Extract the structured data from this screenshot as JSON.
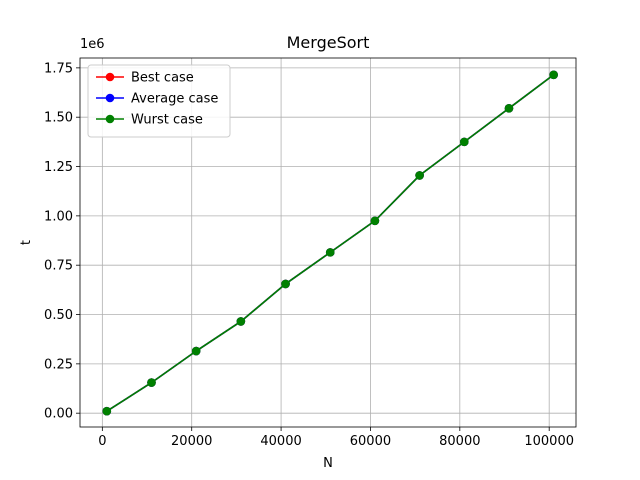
{
  "chart_data": {
    "type": "line",
    "title": "MergeSort",
    "xlabel": "N",
    "ylabel": "t",
    "offset_text": "1e6",
    "xlim": [
      -5000,
      106000
    ],
    "ylim": [
      -0.07,
      1.8
    ],
    "xticks": [
      0,
      20000,
      40000,
      60000,
      80000,
      100000
    ],
    "xtick_labels": [
      "0",
      "20000",
      "40000",
      "60000",
      "80000",
      "100000"
    ],
    "yticks": [
      0.0,
      0.25,
      0.5,
      0.75,
      1.0,
      1.25,
      1.5,
      1.75
    ],
    "ytick_labels": [
      "0.00",
      "0.25",
      "0.50",
      "0.75",
      "1.00",
      "1.25",
      "1.50",
      "1.75"
    ],
    "grid": true,
    "legend_position": "top-left",
    "x": [
      1000,
      11000,
      21000,
      31000,
      41000,
      51000,
      61000,
      71000,
      81000,
      91000,
      101000
    ],
    "series": [
      {
        "name": "Best case",
        "color": "#ff0000",
        "values": [
          0.01,
          0.155,
          0.315,
          0.465,
          0.655,
          0.815,
          0.975,
          1.205,
          1.375,
          1.545,
          1.715
        ]
      },
      {
        "name": "Average case",
        "color": "#0000ff",
        "values": [
          0.01,
          0.155,
          0.315,
          0.465,
          0.655,
          0.815,
          0.975,
          1.205,
          1.375,
          1.545,
          1.715
        ]
      },
      {
        "name": "Wurst case",
        "color": "#008000",
        "values": [
          0.01,
          0.155,
          0.315,
          0.465,
          0.655,
          0.815,
          0.975,
          1.205,
          1.375,
          1.545,
          1.715
        ]
      }
    ]
  }
}
